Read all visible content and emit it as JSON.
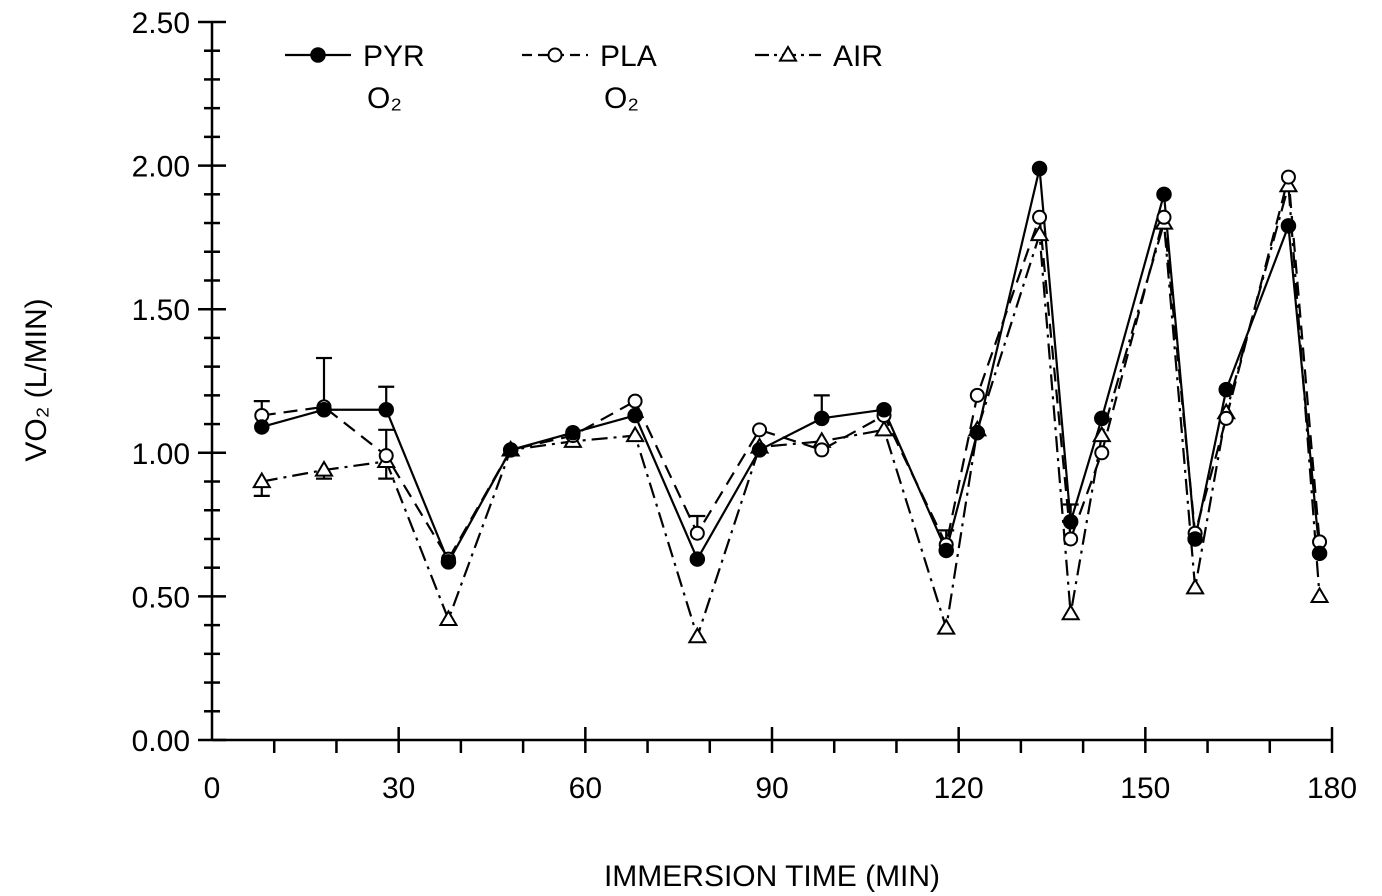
{
  "chart_data": {
    "type": "line",
    "xlabel": "IMMERSION TIME (MIN)",
    "ylabel": "VO₂ (L/MIN)",
    "xlim": [
      0,
      180
    ],
    "ylim": [
      0,
      2.5
    ],
    "x_ticks": [
      0,
      30,
      60,
      90,
      120,
      150,
      180
    ],
    "x_tick_labels": [
      "0",
      "30",
      "60",
      "90",
      "120",
      "150",
      "180"
    ],
    "y_ticks": [
      0,
      0.5,
      1.0,
      1.5,
      2.0,
      2.5
    ],
    "y_tick_labels": [
      "0.00",
      "0.50",
      "1.00",
      "1.50",
      "2.00",
      "2.50"
    ],
    "grid": false,
    "legend_position": "top-left",
    "series": [
      {
        "name": "PYR O₂",
        "label": "PYR",
        "sublabel": "O₂",
        "marker": "filled-circle",
        "dash": "solid",
        "points": [
          [
            8,
            1.09
          ],
          [
            18,
            1.15
          ],
          [
            28,
            1.15
          ],
          [
            38,
            0.62
          ],
          [
            48,
            1.01
          ],
          [
            58,
            1.07
          ],
          [
            68,
            1.13
          ],
          [
            78,
            0.63
          ],
          [
            88,
            1.01
          ],
          [
            98,
            1.12
          ],
          [
            108,
            1.15
          ],
          [
            118,
            0.66
          ],
          [
            123,
            1.07
          ],
          [
            133,
            1.99
          ],
          [
            138,
            0.76
          ],
          [
            143,
            1.12
          ],
          [
            153,
            1.9
          ],
          [
            158,
            0.7
          ],
          [
            163,
            1.22
          ],
          [
            173,
            1.79
          ],
          [
            178,
            0.65
          ]
        ]
      },
      {
        "name": "PLA O₂",
        "label": "PLA",
        "sublabel": "O₂",
        "marker": "open-circle",
        "dash": "dashed",
        "points": [
          [
            8,
            1.13
          ],
          [
            18,
            1.16
          ],
          [
            28,
            0.99
          ],
          [
            38,
            0.63
          ],
          [
            48,
            1.01
          ],
          [
            58,
            1.06
          ],
          [
            68,
            1.18
          ],
          [
            78,
            0.72
          ],
          [
            88,
            1.08
          ],
          [
            98,
            1.01
          ],
          [
            108,
            1.13
          ],
          [
            118,
            0.68
          ],
          [
            123,
            1.2
          ],
          [
            133,
            1.82
          ],
          [
            138,
            0.7
          ],
          [
            143,
            1.0
          ],
          [
            153,
            1.82
          ],
          [
            158,
            0.72
          ],
          [
            163,
            1.12
          ],
          [
            173,
            1.96
          ],
          [
            178,
            0.69
          ]
        ]
      },
      {
        "name": "AIR",
        "label": "AIR",
        "sublabel": "",
        "marker": "open-triangle",
        "dash": "dash-dot",
        "points": [
          [
            8,
            0.9
          ],
          [
            18,
            0.94
          ],
          [
            28,
            0.97
          ],
          [
            38,
            0.42
          ],
          [
            48,
            1.01
          ],
          [
            58,
            1.04
          ],
          [
            68,
            1.06
          ],
          [
            78,
            0.36
          ],
          [
            88,
            1.02
          ],
          [
            98,
            1.04
          ],
          [
            108,
            1.08
          ],
          [
            118,
            0.39
          ],
          [
            123,
            1.08
          ],
          [
            133,
            1.76
          ],
          [
            138,
            0.44
          ],
          [
            143,
            1.06
          ],
          [
            153,
            1.8
          ],
          [
            158,
            0.53
          ],
          [
            163,
            1.14
          ],
          [
            173,
            1.93
          ],
          [
            178,
            0.5
          ]
        ]
      }
    ],
    "error_bars": [
      [
        8,
        1.13,
        1.18
      ],
      [
        8,
        0.9,
        0.85
      ],
      [
        18,
        1.16,
        1.33
      ],
      [
        18,
        0.94,
        0.91
      ],
      [
        28,
        1.15,
        1.23
      ],
      [
        28,
        0.99,
        1.08
      ],
      [
        28,
        0.97,
        0.91
      ],
      [
        78,
        0.72,
        0.78
      ],
      [
        98,
        1.12,
        1.2
      ],
      [
        118,
        0.66,
        0.73
      ],
      [
        138,
        0.76,
        0.82
      ]
    ]
  }
}
